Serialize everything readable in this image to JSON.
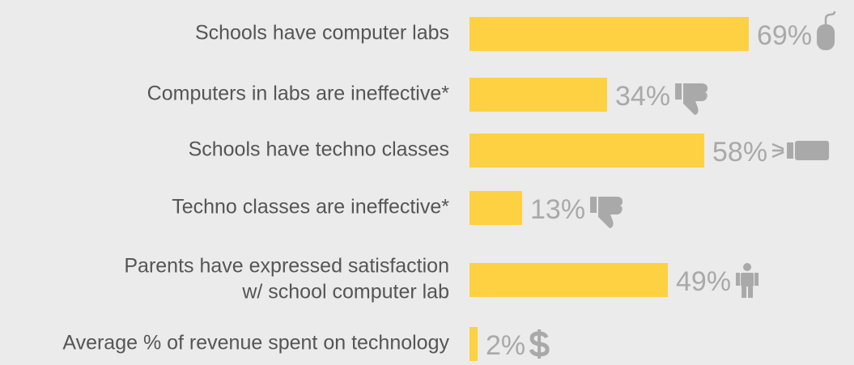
{
  "chart_data": {
    "type": "bar",
    "orientation": "horizontal",
    "categories": [
      "Schools have computer labs",
      "Computers in labs are ineffective*",
      "Schools have techno classes",
      "Techno classes are ineffective*",
      [
        "Parents have expressed satisfaction",
        "w/ school computer lab"
      ],
      "Average % of revenue  spent on technology"
    ],
    "values": [
      69,
      34,
      58,
      13,
      49,
      2
    ],
    "value_labels": [
      "69%",
      "34%",
      "58%",
      "13%",
      "49%",
      "2%"
    ],
    "color": "#fdd142",
    "xlim": [
      0,
      100
    ]
  }
}
